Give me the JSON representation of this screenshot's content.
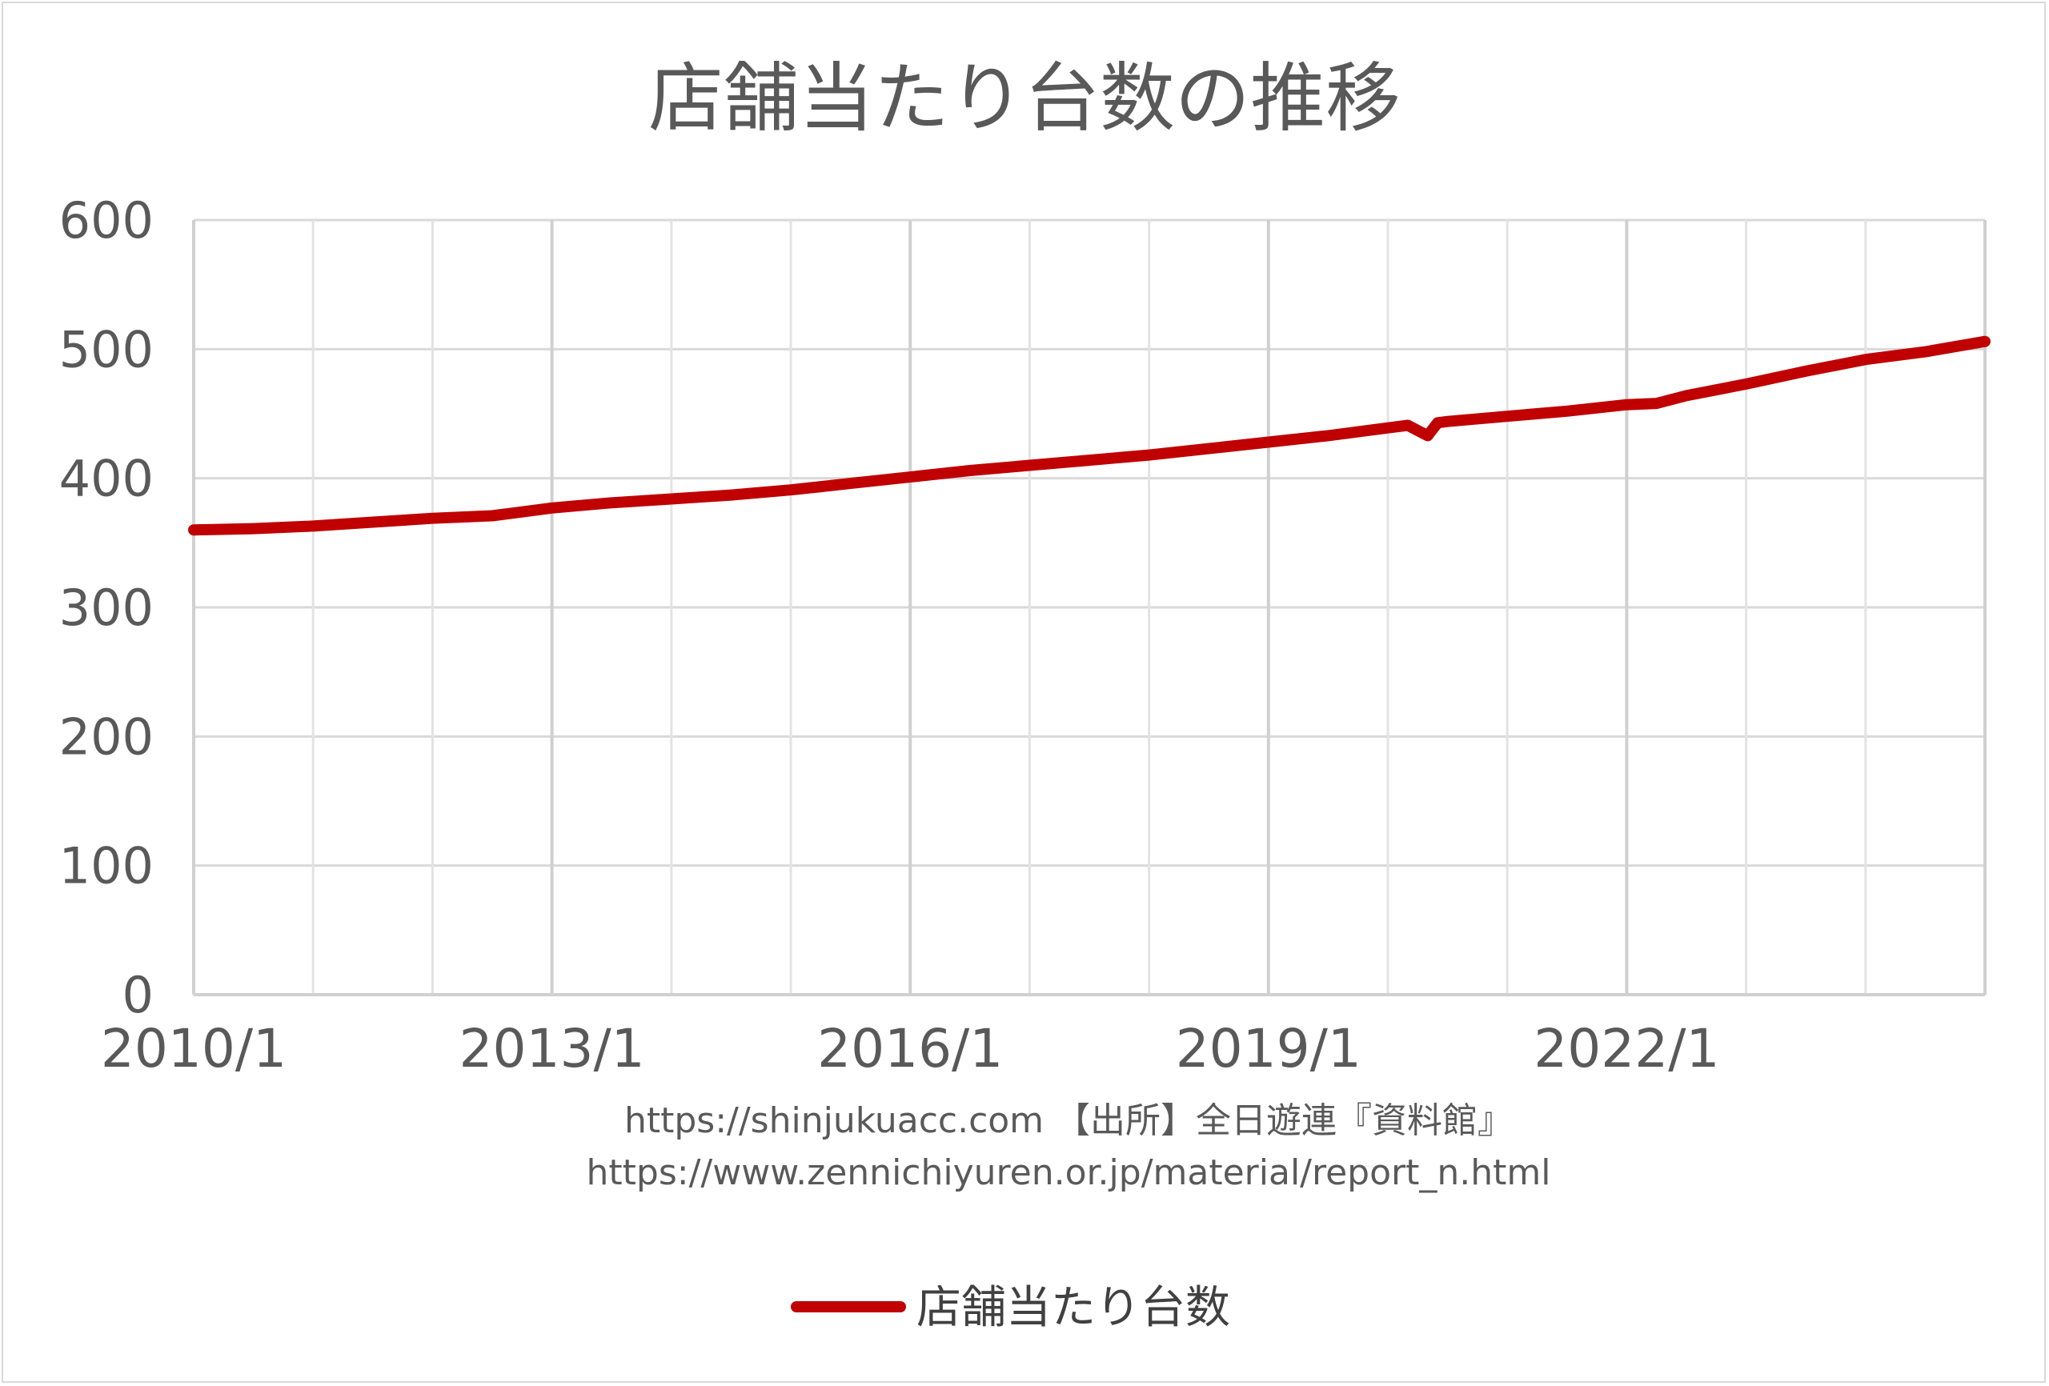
{
  "chart_data": {
    "type": "line",
    "title": "店舗当たり台数の推移",
    "xlabel": "",
    "ylabel": "",
    "ylim": [
      0,
      600
    ],
    "yticks": [
      0,
      100,
      200,
      300,
      400,
      500,
      600
    ],
    "x_tick_labels": [
      "2010/1",
      "2013/1",
      "2016/1",
      "2019/1",
      "2022/1"
    ],
    "xlim": [
      "2010/1",
      "2025/1"
    ],
    "grid": true,
    "legend_position": "bottom",
    "series": [
      {
        "name": "店舗当たり台数",
        "color": "#c00000",
        "points": [
          [
            "2010/1",
            360
          ],
          [
            "2010/7",
            361
          ],
          [
            "2011/1",
            363
          ],
          [
            "2011/7",
            366
          ],
          [
            "2012/1",
            369
          ],
          [
            "2012/7",
            371
          ],
          [
            "2013/1",
            377
          ],
          [
            "2013/7",
            381
          ],
          [
            "2014/1",
            384
          ],
          [
            "2014/7",
            387
          ],
          [
            "2015/1",
            391
          ],
          [
            "2015/7",
            396
          ],
          [
            "2016/1",
            401
          ],
          [
            "2016/7",
            406
          ],
          [
            "2017/1",
            410
          ],
          [
            "2017/7",
            414
          ],
          [
            "2018/1",
            418
          ],
          [
            "2018/7",
            423
          ],
          [
            "2019/1",
            428
          ],
          [
            "2019/7",
            433
          ],
          [
            "2020/1",
            439
          ],
          [
            "2020/3",
            441
          ],
          [
            "2020/5",
            433
          ],
          [
            "2020/6",
            443
          ],
          [
            "2020/7",
            444
          ],
          [
            "2021/1",
            448
          ],
          [
            "2021/7",
            452
          ],
          [
            "2022/1",
            457
          ],
          [
            "2022/4",
            458
          ],
          [
            "2022/7",
            464
          ],
          [
            "2023/1",
            473
          ],
          [
            "2023/7",
            483
          ],
          [
            "2024/1",
            492
          ],
          [
            "2024/7",
            498
          ],
          [
            "2025/1",
            506
          ]
        ]
      }
    ]
  },
  "source": {
    "line1": "https://shinjukuacc.com 【出所】全日遊連『資料館』",
    "line2": "https://www.zennichiyuren.or.jp/material/report_n.html"
  }
}
